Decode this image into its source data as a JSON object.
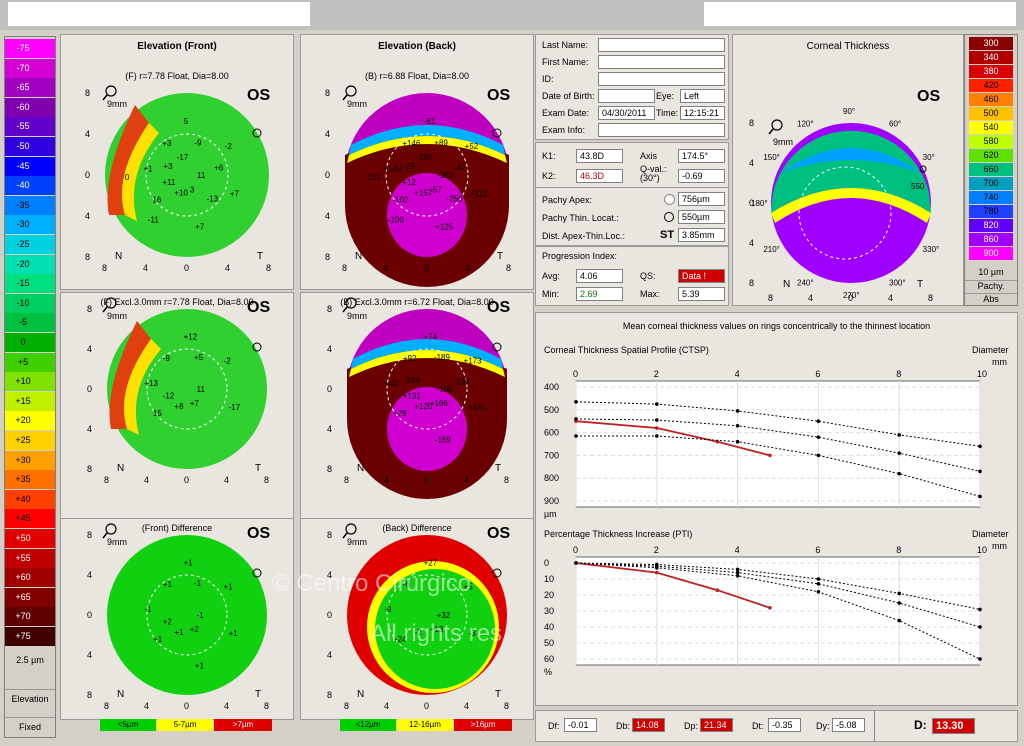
{
  "scale": {
    "values": [
      "-75",
      "-70",
      "-65",
      "-60",
      "-55",
      "-50",
      "-45",
      "-40",
      "-35",
      "-30",
      "-25",
      "-20",
      "-15",
      "-10",
      "-5",
      "0",
      "+5",
      "+10",
      "+15",
      "+20",
      "+25",
      "+30",
      "+35",
      "+40",
      "+45",
      "+50",
      "+55",
      "+60",
      "+65",
      "+70",
      "+75"
    ],
    "colors": [
      "#ff00ff",
      "#d400d4",
      "#a000c0",
      "#8000b0",
      "#6000c8",
      "#3000e0",
      "#0000ff",
      "#0040ff",
      "#0080ff",
      "#00b0ff",
      "#00d0e0",
      "#00e0b0",
      "#00e080",
      "#00d060",
      "#00c040",
      "#00b000",
      "#40d000",
      "#80e000",
      "#c0f000",
      "#ffff00",
      "#ffd000",
      "#ffa000",
      "#ff7000",
      "#ff4000",
      "#ff0000",
      "#e00000",
      "#c00000",
      "#a00000",
      "#800000",
      "#600000",
      "#400000"
    ],
    "step": "2.5 µm",
    "mode": "Elevation",
    "type": "Fixed"
  },
  "maps": [
    {
      "title": "Elevation (Front)",
      "sub": "(F) r=7.78 Float, Dia=8.00",
      "os": "OS",
      "zoom": "9mm",
      "labels": [
        "11",
        "16",
        "5",
        "3",
        "+1",
        "-2",
        "+10",
        "+3",
        "+7",
        "+11",
        "-9",
        "+7",
        "+3",
        "+6",
        "-11",
        "-17",
        "-13",
        "0"
      ]
    },
    {
      "title": "Elevation (Back)",
      "sub": "(B) r=6.88 Float, Dia=8.00",
      "os": "OS",
      "zoom": "9mm",
      "labels": [
        "-103",
        "-102",
        "-61",
        "-57",
        "+143",
        "+52",
        "+157",
        "+146",
        "+111",
        "+12",
        "+89",
        "+125",
        "-29",
        "-47",
        "-100",
        "-165",
        "-256",
        "-131"
      ]
    },
    {
      "title": "",
      "sub": "(F) Excl.3.0mm  r=7.78 Float, Dia=8.00",
      "os": "OS",
      "zoom": "9mm",
      "labels": [
        "11",
        "15",
        "+12",
        "+7",
        "+13",
        "-2",
        "+8",
        "-9",
        "-17",
        "-12",
        "+5"
      ]
    },
    {
      "title": "",
      "sub": "(B) Excl.3.0mm  r=6.72 Float, Dia=8.00",
      "os": "OS",
      "zoom": "9mm",
      "labels": [
        "-100",
        "+79",
        "+74",
        "+166",
        "+42",
        "+173",
        "+120",
        "+92",
        "+161",
        "+131",
        "-189",
        "-169",
        "-264",
        "-139"
      ]
    },
    {
      "title": "",
      "sub": "(Front) Difference",
      "os": "OS",
      "zoom": "9mm",
      "labels": [
        "-1",
        "+1",
        "+1",
        "+2",
        "-1",
        "+1",
        "+1",
        "+1",
        "+1",
        "+2",
        "-1",
        "+1"
      ]
    },
    {
      "title": "",
      "sub": "(Back) Difference",
      "os": "OS",
      "zoom": "9mm",
      "labels": [
        "+32",
        "+24",
        "+27",
        "+13",
        "-9",
        "+5",
        "-2",
        "-6",
        "-3"
      ]
    }
  ],
  "front_diff_legend": [
    "<5µm",
    "5-7µm",
    ">7µm"
  ],
  "back_diff_legend": [
    "<12µm",
    "12-16µm",
    ">16µm"
  ],
  "patient": {
    "last_name_label": "Last Name:",
    "first_name_label": "First Name:",
    "id_label": "ID:",
    "dob_label": "Date of Birth:",
    "eye_label": "Eye:",
    "eye_value": "Left",
    "exam_date_label": "Exam Date:",
    "exam_date_value": "04/30/2011",
    "time_label": "Time:",
    "time_value": "12:15:21",
    "exam_info_label": "Exam Info:"
  },
  "keratometry": {
    "k1_label": "K1:",
    "k1_value": "43.8D",
    "axis_label": "Axis",
    "axis_value": "174.5°",
    "k2_label": "K2:",
    "k2_value": "46.3D",
    "qval_label": "Q-val.:\n(30°)",
    "qval_value": "-0.69",
    "pachy_apex_label": "Pachy Apex:",
    "pachy_apex_value": "756µm",
    "pachy_thin_label": "Pachy Thin. Locat.:",
    "pachy_thin_value": "550µm",
    "dist_label": "Dist. Apex-Thin.Loc.:",
    "st_label": "ST",
    "dist_value": "3.85mm"
  },
  "progression": {
    "title": "Progression Index:",
    "avg_label": "Avg:",
    "avg_value": "4.06",
    "qs_label": "QS:",
    "qs_value": "Data !",
    "min_label": "Min:",
    "min_value": "2.69",
    "max_label": "Max:",
    "max_value": "5.39"
  },
  "thickness_map": {
    "title": "Corneal Thickness",
    "os": "OS",
    "zoom": "9mm",
    "thin_value": "550",
    "scale_values": [
      "300",
      "340",
      "380",
      "420",
      "460",
      "500",
      "540",
      "580",
      "620",
      "660",
      "700",
      "740",
      "780",
      "820",
      "860",
      "900"
    ],
    "scale_colors": [
      "#8b0000",
      "#b00000",
      "#d80000",
      "#ff2000",
      "#ff8000",
      "#ffc000",
      "#ffff00",
      "#c0ff00",
      "#60e000",
      "#00c080",
      "#00a0c0",
      "#0080ff",
      "#2040ff",
      "#6000ff",
      "#a000ff",
      "#ff00ff"
    ],
    "step": "10 µm",
    "mode": "Pachy.",
    "type": "Abs",
    "angles": [
      "90°",
      "60°",
      "30°",
      "120°",
      "150°",
      "180°",
      "210°",
      "240°",
      "270°",
      "300°",
      "330°"
    ]
  },
  "graphs_title": "Mean corneal thickness values on rings concentrically to the thinnest location",
  "ctsp": {
    "title": "Corneal Thickness Spatial Profile (CTSP)",
    "diameter_label": "Diameter",
    "unit": "mm",
    "yunit": "µm",
    "x_ticks": [
      "0",
      "2",
      "4",
      "6",
      "8",
      "10"
    ],
    "y_ticks": [
      "400",
      "500",
      "600",
      "700",
      "800",
      "900"
    ]
  },
  "pti": {
    "title": "Percentage Thickness Increase (PTI)",
    "diameter_label": "Diameter",
    "unit": "mm",
    "yunit": "%",
    "x_ticks": [
      "0",
      "2",
      "4",
      "6",
      "8",
      "10"
    ],
    "y_ticks": [
      "0",
      "10",
      "20",
      "30",
      "40",
      "50",
      "60"
    ]
  },
  "chart_data": [
    {
      "type": "line",
      "title": "Corneal Thickness Spatial Profile (CTSP)",
      "xlabel": "Diameter mm",
      "ylabel": "µm",
      "xlim": [
        0,
        10
      ],
      "ylim": [
        400,
        900
      ],
      "series": [
        {
          "values": [
            [
              0,
              550
            ],
            [
              2,
              580
            ],
            [
              3.5,
              640
            ],
            [
              4.8,
              700
            ]
          ]
        },
        {
          "values": [
            [
              0,
              465
            ],
            [
              2,
              475
            ],
            [
              4,
              505
            ],
            [
              6,
              550
            ],
            [
              8,
              610
            ],
            [
              10,
              660
            ]
          ]
        },
        {
          "values": [
            [
              0,
              540
            ],
            [
              2,
              545
            ],
            [
              4,
              570
            ],
            [
              6,
              620
            ],
            [
              8,
              690
            ],
            [
              10,
              770
            ]
          ]
        },
        {
          "values": [
            [
              0,
              615
            ],
            [
              2,
              615
            ],
            [
              4,
              640
            ],
            [
              6,
              700
            ],
            [
              8,
              780
            ],
            [
              10,
              880
            ]
          ]
        }
      ]
    },
    {
      "type": "line",
      "title": "Percentage Thickness Increase (PTI)",
      "xlabel": "Diameter mm",
      "ylabel": "%",
      "xlim": [
        0,
        10
      ],
      "ylim": [
        0,
        60
      ],
      "series": [
        {
          "values": [
            [
              0,
              0
            ],
            [
              2,
              6
            ],
            [
              3.5,
              17
            ],
            [
              4.8,
              28
            ]
          ]
        },
        {
          "values": [
            [
              0,
              0
            ],
            [
              2,
              1
            ],
            [
              4,
              4
            ],
            [
              6,
              10
            ],
            [
              8,
              19
            ],
            [
              10,
              29
            ]
          ]
        },
        {
          "values": [
            [
              0,
              0
            ],
            [
              2,
              2
            ],
            [
              4,
              6
            ],
            [
              6,
              13
            ],
            [
              8,
              25
            ],
            [
              10,
              40
            ]
          ]
        },
        {
          "values": [
            [
              0,
              0
            ],
            [
              2,
              3
            ],
            [
              4,
              8
            ],
            [
              6,
              18
            ],
            [
              8,
              36
            ],
            [
              10,
              60
            ]
          ]
        }
      ]
    }
  ],
  "bottom": {
    "df_label": "Df:",
    "df_value": "-0.01",
    "db_label": "Db:",
    "db_value": "14.08",
    "dp_label": "Dp:",
    "dp_value": "21.34",
    "dt_label": "Dt:",
    "dt_value": "-0.35",
    "dy_label": "Dy:",
    "dy_value": "-5.08",
    "d_label": "D:",
    "d_value": "13.30"
  },
  "watermark": [
    "© Centro Cirúrgico",
    "All rights res"
  ],
  "colors": {
    "panel": "#e9e6df",
    "red": "#d00000"
  }
}
